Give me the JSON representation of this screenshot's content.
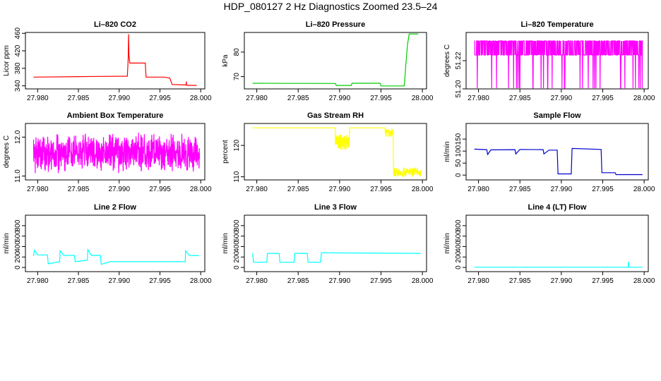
{
  "page": {
    "title": "HDP_080127  2 Hz Diagnostics Zoomed 23.5–24"
  },
  "chart_data": [
    {
      "type": "line",
      "title": "Li–820 CO2",
      "xlabel": "",
      "ylabel": "Licor ppm",
      "color": "#ff0000",
      "xlim": [
        27.9785,
        28.0005
      ],
      "ylim": [
        333,
        462
      ],
      "xticks": [
        27.98,
        27.985,
        27.99,
        27.995,
        28.0
      ],
      "xtick_labels": [
        "27.980",
        "27.985",
        "27.990",
        "27.995",
        "28.000"
      ],
      "yticks": [
        340,
        380,
        420,
        460
      ],
      "ytick_labels": [
        "340",
        "380",
        "420",
        "460"
      ],
      "series": [
        {
          "x": [
            27.9795,
            27.985,
            27.991,
            27.9911,
            27.99115,
            27.9912,
            27.9913,
            27.9932,
            27.9933,
            27.9955,
            27.9962,
            27.9965,
            27.9982,
            27.99823,
            27.99826,
            27.9983,
            27.9995
          ],
          "y": [
            360,
            361,
            362,
            400,
            458,
            410,
            392,
            392,
            360,
            360,
            358,
            343,
            342,
            350,
            342,
            341,
            341
          ]
        }
      ]
    },
    {
      "type": "line",
      "title": "Li–820 Pressure",
      "xlabel": "",
      "ylabel": "kPa",
      "color": "#00cc00",
      "xlim": [
        27.9785,
        28.0005
      ],
      "ylim": [
        65,
        88
      ],
      "xticks": [
        27.98,
        27.985,
        27.99,
        27.995,
        28.0
      ],
      "xtick_labels": [
        "27.980",
        "27.985",
        "27.990",
        "27.995",
        "28.000"
      ],
      "yticks": [
        70,
        80
      ],
      "ytick_labels": [
        "70",
        "80"
      ],
      "series": [
        {
          "x": [
            27.9795,
            27.9895,
            27.9896,
            27.9914,
            27.9915,
            27.9949,
            27.995,
            27.9978,
            27.9979,
            27.998,
            27.9982,
            27.9984,
            27.9995
          ],
          "y": [
            67.3,
            67.2,
            66.4,
            66.4,
            67.3,
            67.3,
            66.2,
            66.2,
            70,
            75,
            83,
            87.4,
            87.4
          ]
        }
      ]
    },
    {
      "type": "line",
      "title": "Li–820 Temperature",
      "xlabel": "",
      "ylabel": "degrees C",
      "color": "#ff00ff",
      "xlim": [
        27.9785,
        28.0005
      ],
      "ylim": [
        51.2,
        51.24
      ],
      "xticks": [
        27.98,
        27.985,
        27.99,
        27.995,
        28.0
      ],
      "xtick_labels": [
        "27.980",
        "27.985",
        "27.990",
        "27.995",
        "28.000"
      ],
      "yticks": [
        51.2,
        51.22
      ],
      "ytick_labels": [
        "51.20",
        "51.22"
      ],
      "series": [
        {
          "x": [],
          "y": []
        }
      ]
    },
    {
      "type": "line",
      "title": "Ambient Box Temperature",
      "xlabel": "",
      "ylabel": "degrees C",
      "color": "#ff00ff",
      "xlim": [
        27.9785,
        28.0005
      ],
      "ylim": [
        10.9,
        12.35
      ],
      "xticks": [
        27.98,
        27.985,
        27.99,
        27.995,
        28.0
      ],
      "xtick_labels": [
        "27.980",
        "27.985",
        "27.990",
        "27.995",
        "28.000"
      ],
      "yticks": [
        11.0,
        12.0
      ],
      "ytick_labels": [
        "11.0",
        "12.0"
      ],
      "series": [
        {
          "x": [],
          "y": []
        }
      ]
    },
    {
      "type": "line",
      "title": "Gas Stream RH",
      "xlabel": "",
      "ylabel": "percent",
      "color": "#ffff00",
      "xlim": [
        27.9785,
        28.0005
      ],
      "ylim": [
        109,
        127
      ],
      "xticks": [
        27.98,
        27.985,
        27.99,
        27.995,
        28.0
      ],
      "xtick_labels": [
        "27.980",
        "27.985",
        "27.990",
        "27.995",
        "28.000"
      ],
      "yticks": [
        110,
        120
      ],
      "ytick_labels": [
        "110",
        "120"
      ],
      "series": [
        {
          "x": [],
          "y": []
        }
      ]
    },
    {
      "type": "line",
      "title": "Sample Flow",
      "xlabel": "",
      "ylabel": "ml/min",
      "color": "#0000cc",
      "xlim": [
        27.9785,
        28.0005
      ],
      "ylim": [
        -20,
        215
      ],
      "xticks": [
        27.98,
        27.985,
        27.99,
        27.995,
        28.0
      ],
      "xtick_labels": [
        "27.980",
        "27.985",
        "27.990",
        "27.995",
        "28.000"
      ],
      "yticks": [
        0,
        50,
        100,
        150
      ],
      "ytick_labels": [
        "0",
        "50",
        "100",
        "150"
      ],
      "series": [
        {
          "x": [
            27.9795,
            27.981,
            27.9811,
            27.9815,
            27.9844,
            27.9845,
            27.985,
            27.9878,
            27.9879,
            27.9885,
            27.9895,
            27.9896,
            27.9912,
            27.9913,
            27.9948,
            27.9949,
            27.9965,
            27.9966,
            27.9998
          ],
          "y": [
            108,
            106,
            86,
            105,
            106,
            88,
            107,
            106,
            88,
            104,
            104,
            5,
            5,
            111,
            107,
            10,
            10,
            2,
            2
          ]
        }
      ]
    },
    {
      "type": "line",
      "title": "Line 2 Flow",
      "xlabel": "",
      "ylabel": "ml/min",
      "color": "#00ffff",
      "xlim": [
        27.9785,
        28.0005
      ],
      "ylim": [
        -80,
        1000
      ],
      "xticks": [
        27.98,
        27.985,
        27.99,
        27.995,
        28.0
      ],
      "xtick_labels": [
        "27.980",
        "27.985",
        "27.990",
        "27.995",
        "28.000"
      ],
      "yticks": [
        0,
        200,
        400,
        600,
        800
      ],
      "ytick_labels": [
        "0",
        "200",
        "400",
        "600",
        "800"
      ],
      "series": [
        {
          "x": [
            27.9795,
            27.9796,
            27.98,
            27.9812,
            27.9813,
            27.9827,
            27.98275,
            27.9832,
            27.9845,
            27.9846,
            27.9861,
            27.98615,
            27.9866,
            27.9877,
            27.9878,
            27.9889,
            27.9891,
            27.9981,
            27.99815,
            27.9986,
            27.9998
          ],
          "y": [
            220,
            330,
            240,
            240,
            70,
            110,
            320,
            230,
            230,
            110,
            140,
            340,
            230,
            230,
            60,
            110,
            110,
            110,
            320,
            230,
            225
          ]
        }
      ]
    },
    {
      "type": "line",
      "title": "Line 3 Flow",
      "xlabel": "",
      "ylabel": "ml/min",
      "color": "#00ffff",
      "xlim": [
        27.9785,
        28.0005
      ],
      "ylim": [
        -80,
        1000
      ],
      "xticks": [
        27.98,
        27.985,
        27.99,
        27.995,
        28.0
      ],
      "xtick_labels": [
        "27.980",
        "27.985",
        "27.990",
        "27.995",
        "28.000"
      ],
      "yticks": [
        0,
        200,
        400,
        600,
        800
      ],
      "ytick_labels": [
        "0",
        "200",
        "400",
        "600",
        "800"
      ],
      "series": [
        {
          "x": [
            27.9795,
            27.9796,
            27.9812,
            27.9813,
            27.9827,
            27.9828,
            27.9845,
            27.9846,
            27.9861,
            27.9862,
            27.9877,
            27.9878,
            27.9998
          ],
          "y": [
            270,
            100,
            100,
            270,
            270,
            100,
            100,
            270,
            270,
            100,
            100,
            280,
            270
          ]
        }
      ]
    },
    {
      "type": "line",
      "title": "Line 4 (LT) Flow",
      "xlabel": "",
      "ylabel": "ml/min",
      "color": "#00ffff",
      "xlim": [
        27.9785,
        28.0005
      ],
      "ylim": [
        -80,
        1000
      ],
      "xticks": [
        27.98,
        27.985,
        27.99,
        27.995,
        28.0
      ],
      "xtick_labels": [
        "27.980",
        "27.985",
        "27.990",
        "27.995",
        "28.000"
      ],
      "yticks": [
        0,
        200,
        400,
        600,
        800
      ],
      "ytick_labels": [
        "0",
        "200",
        "400",
        "600",
        "800"
      ],
      "series": [
        {
          "x": [
            27.9795,
            27.9981,
            27.99812,
            27.99818,
            27.9982,
            27.9998
          ],
          "y": [
            5,
            5,
            110,
            10,
            5,
            5
          ]
        }
      ]
    }
  ]
}
